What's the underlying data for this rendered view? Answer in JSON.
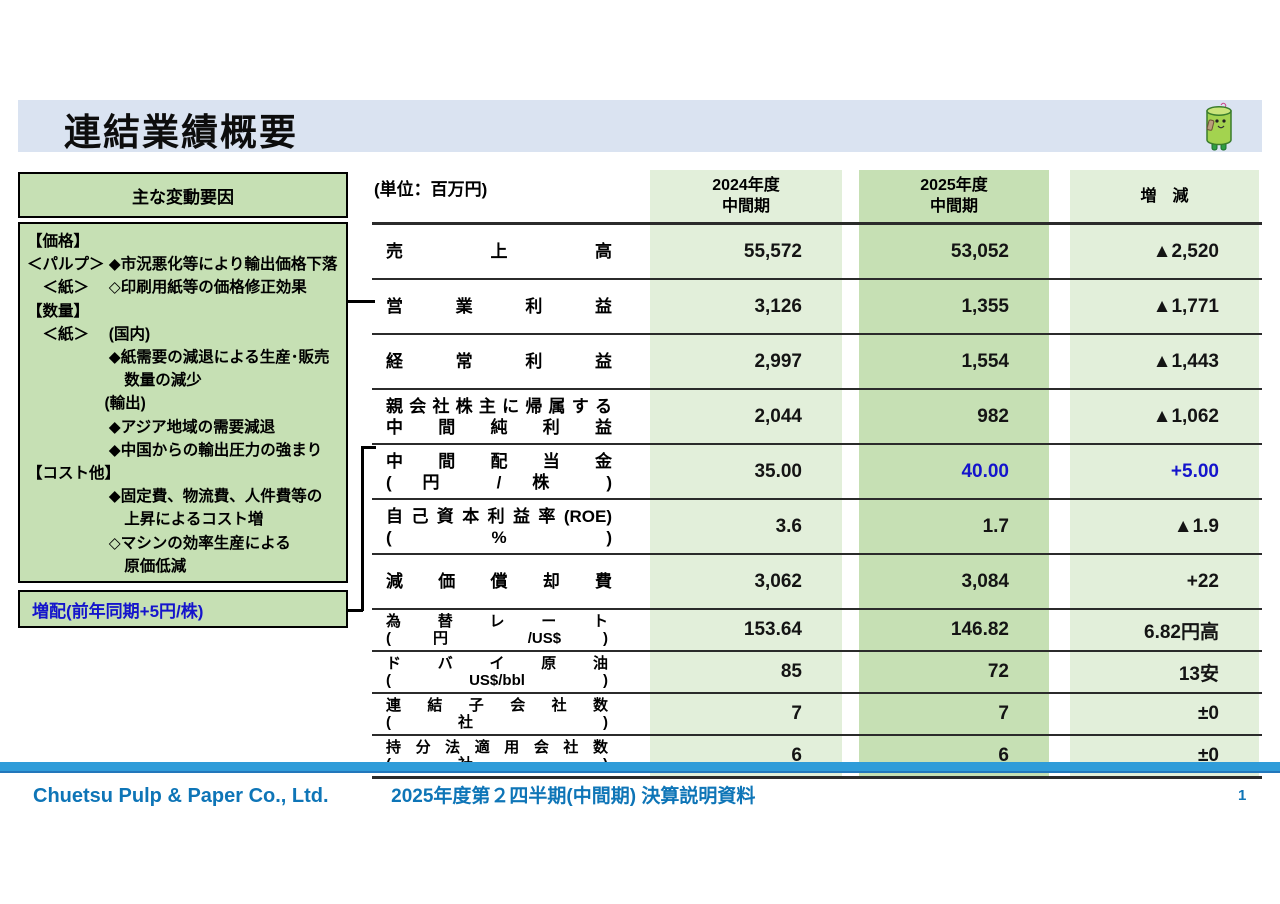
{
  "page": {
    "title": "連結業績概要"
  },
  "mascot_icon": "bamboo-character",
  "colors": {
    "title_band": "#dae3f1",
    "green_dark": "#c6e0b4",
    "green_light": "#e2efda",
    "value_blue": "#1414cc",
    "footer_blue": "#0e75b7",
    "stripe_blue": "#2f9cd9"
  },
  "factors": {
    "title": "主な変動要因",
    "lines": [
      "【価格】",
      "＜パルプ＞ ◆市況悪化等により輸出価格下落",
      "　＜紙＞　 ◇印刷用紙等の価格修正効果",
      "【数量】",
      "　＜紙＞　 (国内)",
      "　　　　　 ◆紙需要の減退による生産･販売",
      "　　　　　　 数量の減少",
      "　　　　　(輸出)",
      "　　　　　 ◆アジア地域の需要減退",
      "　　　　　 ◆中国からの輸出圧力の強まり",
      "【コスト他】",
      "　　　　　 ◆固定費、物流費、人件費等の",
      "　　　　　　 上昇によるコスト増",
      "　　　　　 ◇マシンの効率生産による",
      "　　　　　　 原価低減"
    ],
    "note": "増配(前年同期+5円/株)"
  },
  "table": {
    "unit_label": "(単位：百万円)",
    "columns": [
      {
        "line1": "2024年度",
        "line2": "中間期"
      },
      {
        "line1": "2025年度",
        "line2": "中間期"
      },
      {
        "line1": "増　減"
      }
    ],
    "rows": [
      {
        "label": [
          "売上高"
        ],
        "v2024": "55,572",
        "v2025": "53,052",
        "diff": "▲2,520",
        "blue": false,
        "short": false
      },
      {
        "label": [
          "営業利益"
        ],
        "v2024": "3,126",
        "v2025": "1,355",
        "diff": "▲1,771",
        "blue": false,
        "short": false
      },
      {
        "label": [
          "経常利益"
        ],
        "v2024": "2,997",
        "v2025": "1,554",
        "diff": "▲1,443",
        "blue": false,
        "short": false
      },
      {
        "label": [
          "親会社株主に帰属する",
          "中間純利益"
        ],
        "v2024": "2,044",
        "v2025": "982",
        "diff": "▲1,062",
        "blue": false,
        "short": false
      },
      {
        "label": [
          "中間配当金",
          "( 円 / 株 )"
        ],
        "v2024": "35.00",
        "v2025": "40.00",
        "diff": "+5.00",
        "blue": true,
        "short": false
      },
      {
        "label": [
          "自己資本利益率(ROE)",
          "( % )"
        ],
        "v2024": "3.6",
        "v2025": "1.7",
        "diff": "▲1.9",
        "blue": false,
        "short": false
      },
      {
        "label": [
          "減価償却費"
        ],
        "v2024": "3,062",
        "v2025": "3,084",
        "diff": "+22",
        "blue": false,
        "short": false
      },
      {
        "label": [
          "為替レート",
          "( 円 /US$ )"
        ],
        "v2024": "153.64",
        "v2025": "146.82",
        "diff": "6.82円高",
        "blue": false,
        "short": true
      },
      {
        "label": [
          "ドバイ原油",
          "( US$/bbl )"
        ],
        "v2024": "85",
        "v2025": "72",
        "diff": "13安",
        "blue": false,
        "short": true
      },
      {
        "label": [
          "連結子会社数",
          "( 社 )"
        ],
        "v2024": "7",
        "v2025": "7",
        "diff": "±0",
        "blue": false,
        "short": true
      },
      {
        "label": [
          "持分法適用会社数",
          "( 社 )"
        ],
        "v2024": "6",
        "v2025": "6",
        "diff": "±0",
        "blue": false,
        "short": true
      }
    ]
  },
  "footer": {
    "company": "Chuetsu Pulp & Paper Co., Ltd.",
    "doc_title": "2025年度第２四半期(中間期) 決算説明資料",
    "page_number": "1"
  }
}
